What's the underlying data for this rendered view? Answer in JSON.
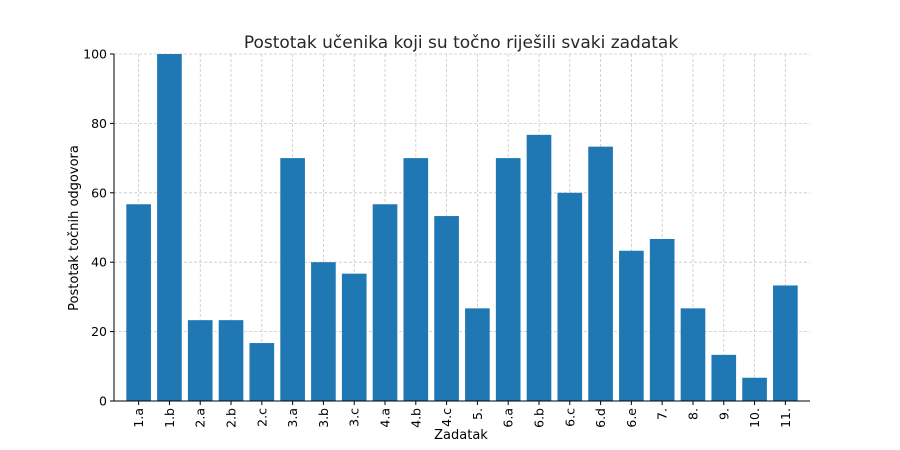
{
  "chart_data": {
    "type": "bar",
    "title": "Postotak učenika koji su točno riješili svaki zadatak",
    "xlabel": "Zadatak",
    "ylabel": "Postotak točnih odgovora",
    "ylim": [
      0,
      100
    ],
    "yticks": [
      0,
      20,
      40,
      60,
      80,
      100
    ],
    "grid": true,
    "bar_color": "#1f77b4",
    "categories": [
      "1.a",
      "1.b",
      "2.a",
      "2.b",
      "2.c",
      "3.a",
      "3.b",
      "3.c",
      "4.a",
      "4.b",
      "4.c",
      "5.",
      "6.a",
      "6.b",
      "6.c",
      "6.d",
      "6.e",
      "7.",
      "8.",
      "9.",
      "10.",
      "11."
    ],
    "values": [
      56.7,
      100,
      23.3,
      23.3,
      16.7,
      70,
      40,
      36.7,
      56.7,
      70,
      53.3,
      26.7,
      70,
      76.7,
      60,
      73.3,
      43.3,
      46.7,
      26.7,
      13.3,
      6.7,
      33.3
    ]
  }
}
